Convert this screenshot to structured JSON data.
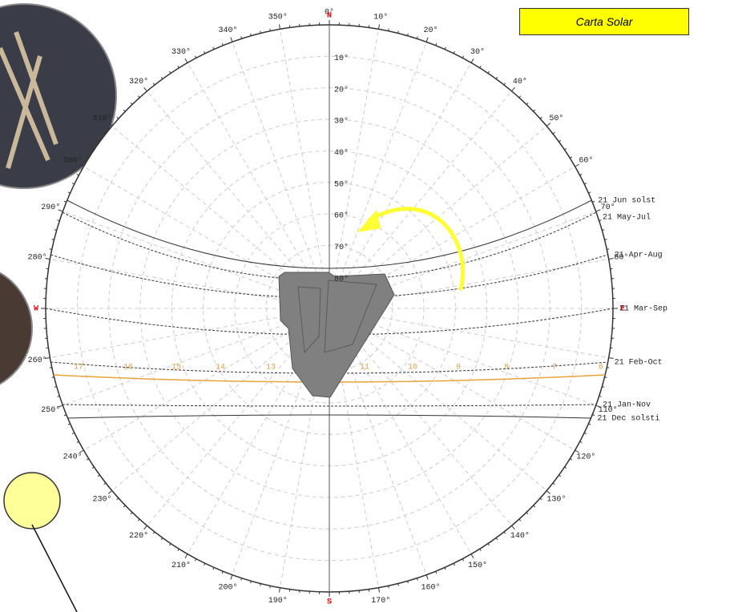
{
  "title": "Carta Solar",
  "compass": {
    "north": "N",
    "east": "E",
    "west": "W",
    "south": "S"
  },
  "azimuth_labels": [
    {
      "value": 0,
      "label": "0°"
    },
    {
      "value": 10,
      "label": "10°"
    },
    {
      "value": 20,
      "label": "20°"
    },
    {
      "value": 30,
      "label": "30°"
    },
    {
      "value": 40,
      "label": "40°"
    },
    {
      "value": 50,
      "label": "50°"
    },
    {
      "value": 60,
      "label": "60°"
    },
    {
      "value": 70,
      "label": "70°"
    },
    {
      "value": 80,
      "label": "80°"
    },
    {
      "value": 110,
      "label": "110°"
    },
    {
      "value": 120,
      "label": "120°"
    },
    {
      "value": 130,
      "label": "130°"
    },
    {
      "value": 140,
      "label": "140°"
    },
    {
      "value": 150,
      "label": "150°"
    },
    {
      "value": 160,
      "label": "160°"
    },
    {
      "value": 170,
      "label": "170°"
    },
    {
      "value": 190,
      "label": "190°"
    },
    {
      "value": 200,
      "label": "200°"
    },
    {
      "value": 210,
      "label": "210°"
    },
    {
      "value": 220,
      "label": "220°"
    },
    {
      "value": 230,
      "label": "230°"
    },
    {
      "value": 240,
      "label": "240°"
    },
    {
      "value": 250,
      "label": "250°"
    },
    {
      "value": 260,
      "label": "260°"
    },
    {
      "value": 280,
      "label": "280°"
    },
    {
      "value": 290,
      "label": "290°"
    },
    {
      "value": 300,
      "label": "300°"
    },
    {
      "value": 310,
      "label": "310°"
    },
    {
      "value": 320,
      "label": "320°"
    },
    {
      "value": 330,
      "label": "330°"
    },
    {
      "value": 340,
      "label": "340°"
    },
    {
      "value": 350,
      "label": "350°"
    }
  ],
  "altitude_labels": [
    {
      "value": 10,
      "label": "10°"
    },
    {
      "value": 20,
      "label": "20°"
    },
    {
      "value": 30,
      "label": "30°"
    },
    {
      "value": 40,
      "label": "40°"
    },
    {
      "value": 50,
      "label": "50°"
    },
    {
      "value": 60,
      "label": "60°"
    },
    {
      "value": 70,
      "label": "70°"
    },
    {
      "value": 80,
      "label": "80°"
    }
  ],
  "date_labels": [
    "21 Jun  solst",
    "21 May-Jul",
    "21 Apr-Aug",
    "21 Mar-Sep",
    "21 Feb-Oct",
    "21 Jan-Nov",
    "21 Dec  solsti"
  ],
  "hour_labels": [
    "17",
    "16",
    "15",
    "14",
    "13",
    "11",
    "10",
    "9",
    "8",
    "7",
    "6"
  ]
}
